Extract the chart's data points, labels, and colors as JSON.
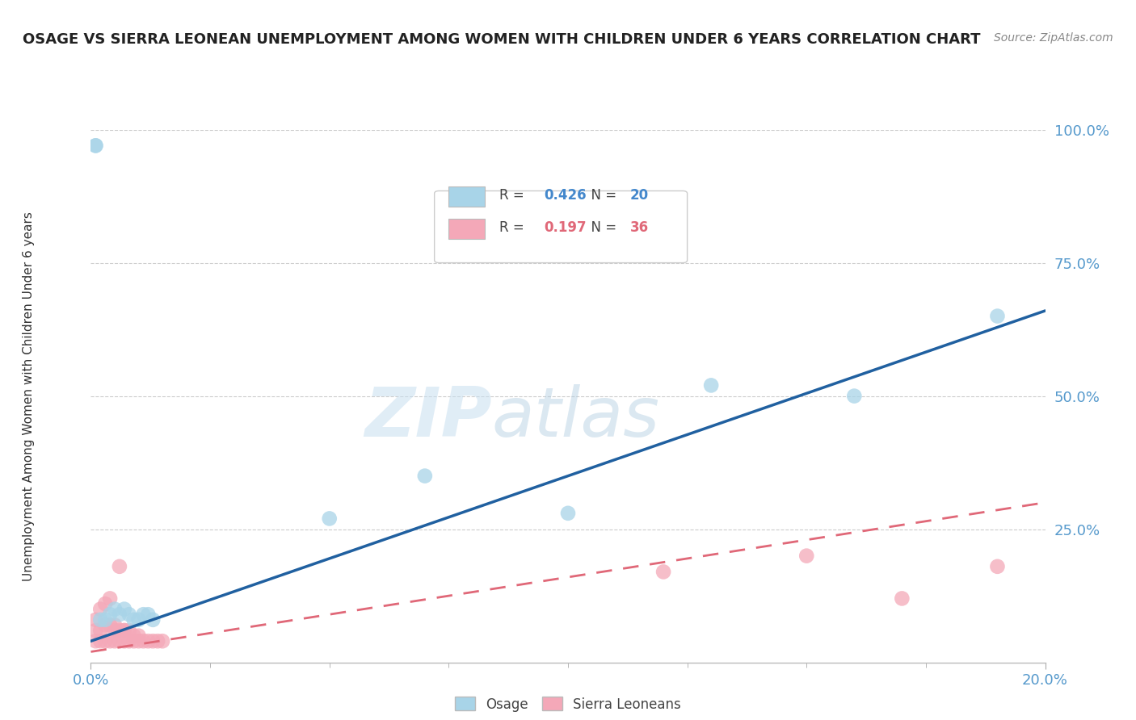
{
  "title": "OSAGE VS SIERRA LEONEAN UNEMPLOYMENT AMONG WOMEN WITH CHILDREN UNDER 6 YEARS CORRELATION CHART",
  "source": "Source: ZipAtlas.com",
  "ylabel": "Unemployment Among Women with Children Under 6 years",
  "legend_blue_label": "Osage",
  "legend_pink_label": "Sierra Leoneans",
  "R_blue": 0.426,
  "N_blue": 20,
  "R_pink": 0.197,
  "N_pink": 36,
  "blue_color": "#a8d4e8",
  "pink_color": "#f4a8b8",
  "blue_line_color": "#2060a0",
  "pink_line_color": "#e06878",
  "watermark_zip": "ZIP",
  "watermark_atlas": "atlas",
  "blue_scatter_x": [
    0.001,
    0.001,
    0.002,
    0.003,
    0.004,
    0.005,
    0.006,
    0.007,
    0.008,
    0.009,
    0.01,
    0.011,
    0.012,
    0.013,
    0.05,
    0.07,
    0.1,
    0.13,
    0.16,
    0.19
  ],
  "blue_scatter_y": [
    0.97,
    0.97,
    0.08,
    0.08,
    0.09,
    0.1,
    0.09,
    0.1,
    0.09,
    0.08,
    0.08,
    0.09,
    0.09,
    0.08,
    0.27,
    0.35,
    0.28,
    0.52,
    0.5,
    0.65
  ],
  "pink_scatter_x": [
    0.001,
    0.001,
    0.001,
    0.002,
    0.002,
    0.002,
    0.003,
    0.003,
    0.003,
    0.004,
    0.004,
    0.004,
    0.005,
    0.005,
    0.005,
    0.006,
    0.006,
    0.006,
    0.007,
    0.007,
    0.007,
    0.008,
    0.008,
    0.009,
    0.009,
    0.01,
    0.01,
    0.011,
    0.012,
    0.013,
    0.014,
    0.015,
    0.12,
    0.15,
    0.17,
    0.19
  ],
  "pink_scatter_y": [
    0.04,
    0.06,
    0.08,
    0.04,
    0.06,
    0.1,
    0.04,
    0.07,
    0.11,
    0.04,
    0.07,
    0.12,
    0.04,
    0.07,
    0.06,
    0.04,
    0.06,
    0.18,
    0.04,
    0.06,
    0.06,
    0.04,
    0.06,
    0.04,
    0.05,
    0.04,
    0.05,
    0.04,
    0.04,
    0.04,
    0.04,
    0.04,
    0.17,
    0.2,
    0.12,
    0.18
  ],
  "xlim": [
    0.0,
    0.2
  ],
  "ylim": [
    0.0,
    1.0
  ],
  "yticks": [
    0.25,
    0.5,
    0.75,
    1.0
  ],
  "ytick_labels": [
    "25.0%",
    "50.0%",
    "75.0%",
    "100.0%"
  ],
  "xtick_labels": [
    "0.0%",
    "20.0%"
  ],
  "background_color": "#ffffff",
  "grid_color": "#cccccc",
  "blue_trendline_x": [
    0.0,
    0.2
  ],
  "blue_trendline_y": [
    0.04,
    0.66
  ],
  "pink_trendline_x": [
    0.0,
    0.2
  ],
  "pink_trendline_y": [
    0.02,
    0.3
  ]
}
